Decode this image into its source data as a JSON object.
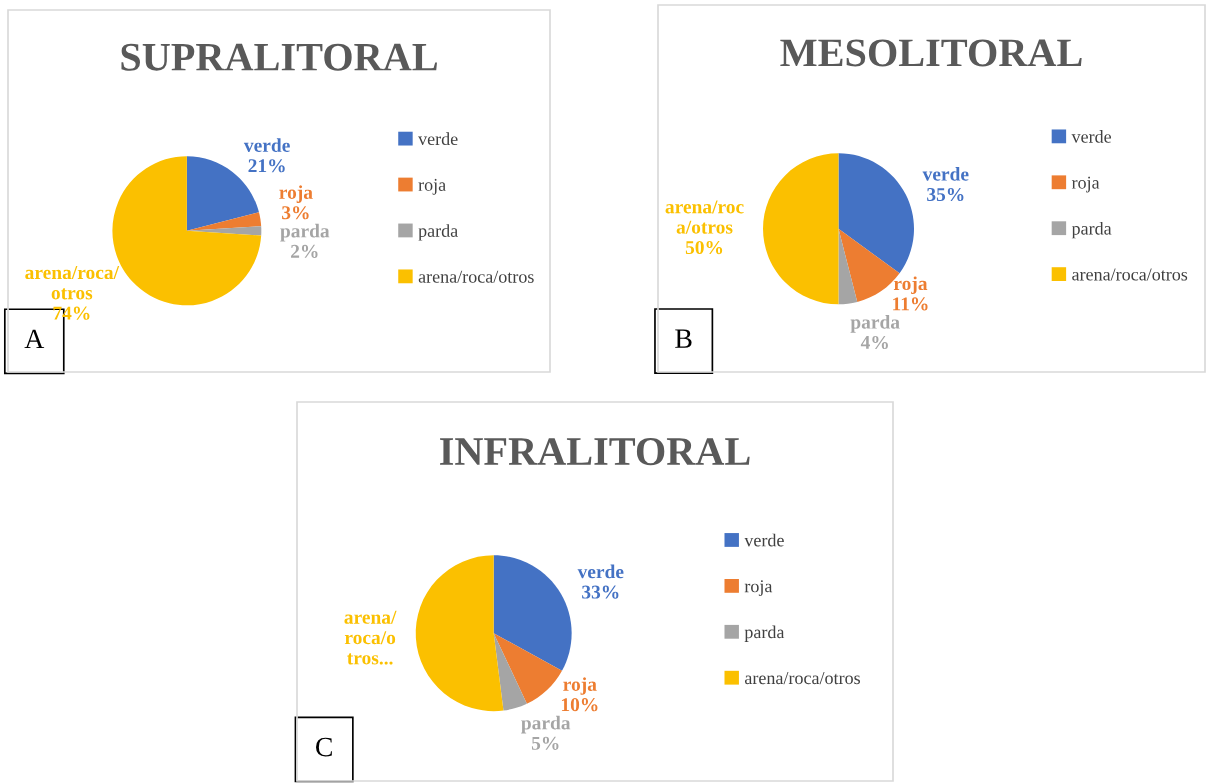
{
  "chart_data": [
    {
      "type": "pie",
      "title": "SUPRALITORAL",
      "categories": [
        "verde",
        "roja",
        "parda",
        "arena/roca/otros"
      ],
      "values": [
        21,
        3,
        2,
        74
      ],
      "colors": [
        "#4472c4",
        "#ed7d31",
        "#a5a5a5",
        "#fbc000"
      ],
      "value_labels": [
        "verde\n21%",
        "roja\n3%",
        "parda\n2%",
        "arena/roca/\notros\n74%"
      ],
      "legend": "right",
      "annotations": [
        "A"
      ]
    },
    {
      "type": "pie",
      "title": "MESOLITORAL",
      "categories": [
        "verde",
        "roja",
        "parda",
        "arena/roca/otros"
      ],
      "values": [
        35,
        11,
        4,
        50
      ],
      "colors": [
        "#4472c4",
        "#ed7d31",
        "#a5a5a5",
        "#fbc000"
      ],
      "value_labels": [
        "verde\n35%",
        "roja\n11%",
        "parda\n4%",
        "arena/roc\na/otros\n50%"
      ],
      "legend": "right",
      "annotations": [
        "B"
      ]
    },
    {
      "type": "pie",
      "title": "INFRALITORAL",
      "categories": [
        "verde",
        "roja",
        "parda",
        "arena/roca/otros"
      ],
      "values": [
        33,
        10,
        5,
        52
      ],
      "colors": [
        "#4472c4",
        "#ed7d31",
        "#a5a5a5",
        "#fbc000"
      ],
      "value_labels": [
        "verde\n33%",
        "roja\n10%",
        "parda\n5%",
        "arena/\nroca/o\ntros..."
      ],
      "legend": "right",
      "annotations": [
        "C"
      ]
    }
  ]
}
